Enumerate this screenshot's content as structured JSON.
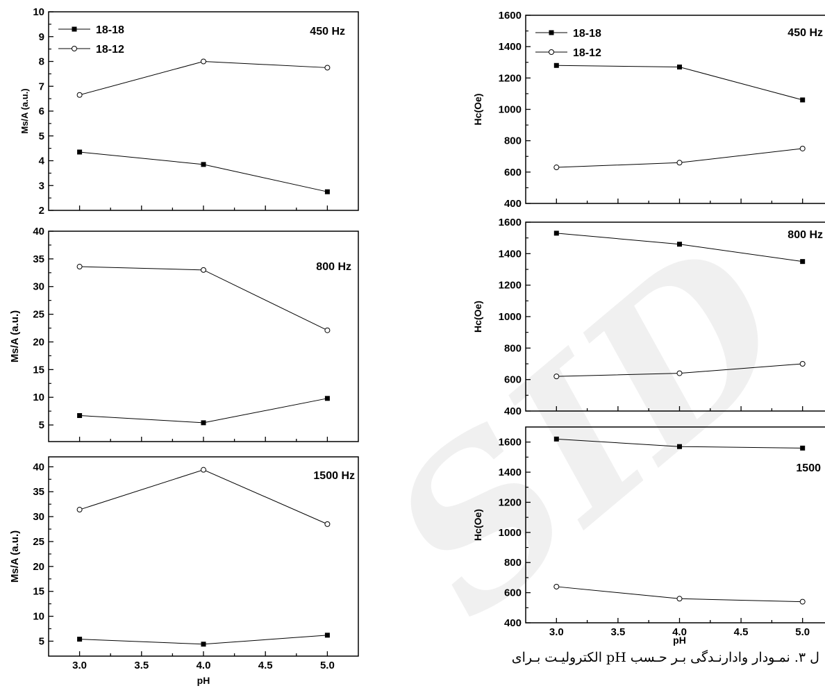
{
  "caption": "ل ۳. نمـودار وادارنـدگی بـر حـسب pH الکترولیـت بـرای",
  "chart_data": [
    {
      "type": "line",
      "title": "450 Hz",
      "xlabel": "",
      "ylabel": "Ms/A (a.u.)",
      "x": [
        3.0,
        4.0,
        5.0
      ],
      "xlim": [
        2.75,
        5.25
      ],
      "ylim": [
        2,
        10
      ],
      "xticks": [],
      "yticks": [
        "2",
        "3",
        "4",
        "5",
        "6",
        "7",
        "8",
        "9",
        "10"
      ],
      "legend": "top-left",
      "series": [
        {
          "name": "18-18",
          "marker": "filled-square",
          "values": [
            4.35,
            3.85,
            2.75
          ]
        },
        {
          "name": "18-12",
          "marker": "open-circle",
          "values": [
            6.65,
            8.0,
            7.75
          ]
        }
      ]
    },
    {
      "type": "line",
      "title": "800 Hz",
      "xlabel": "",
      "ylabel": "Ms/A (a.u.)",
      "x": [
        3.0,
        4.0,
        5.0
      ],
      "xlim": [
        2.75,
        5.25
      ],
      "ylim": [
        2,
        40
      ],
      "xticks": [],
      "yticks": [
        "5",
        "10",
        "15",
        "20",
        "25",
        "30",
        "35",
        "40"
      ],
      "series": [
        {
          "name": "18-18",
          "marker": "filled-square",
          "values": [
            6.7,
            5.4,
            9.8
          ]
        },
        {
          "name": "18-12",
          "marker": "open-circle",
          "values": [
            33.6,
            33.0,
            22.1
          ]
        }
      ]
    },
    {
      "type": "line",
      "title": "1500 Hz",
      "xlabel": "pH",
      "ylabel": "Ms/A (a.u.)",
      "x": [
        3.0,
        4.0,
        5.0
      ],
      "xlim": [
        2.75,
        5.25
      ],
      "ylim": [
        2,
        42
      ],
      "xticks": [
        "3.0",
        "3.5",
        "4.0",
        "4.5",
        "5.0"
      ],
      "yticks": [
        "5",
        "10",
        "15",
        "20",
        "25",
        "30",
        "35",
        "40"
      ],
      "series": [
        {
          "name": "18-18",
          "marker": "filled-square",
          "values": [
            5.4,
            4.4,
            6.2
          ]
        },
        {
          "name": "18-12",
          "marker": "open-circle",
          "values": [
            31.4,
            39.4,
            28.5
          ]
        }
      ]
    },
    {
      "type": "line",
      "title": "450 Hz",
      "xlabel": "",
      "ylabel": "Hc(Oe)",
      "x": [
        3.0,
        4.0,
        5.0
      ],
      "xlim": [
        2.75,
        5.25
      ],
      "ylim": [
        400,
        1600
      ],
      "xticks": [],
      "yticks": [
        "400",
        "600",
        "800",
        "1000",
        "1200",
        "1400",
        "1600"
      ],
      "legend": "top-left",
      "series": [
        {
          "name": "18-18",
          "marker": "filled-square",
          "values": [
            1280,
            1270,
            1060
          ]
        },
        {
          "name": "18-12",
          "marker": "open-circle",
          "values": [
            630,
            660,
            750
          ]
        }
      ]
    },
    {
      "type": "line",
      "title": "800 Hz",
      "xlabel": "",
      "ylabel": "Hc(Oe)",
      "x": [
        3.0,
        4.0,
        5.0
      ],
      "xlim": [
        2.75,
        5.25
      ],
      "ylim": [
        400,
        1600
      ],
      "xticks": [],
      "yticks": [
        "400",
        "600",
        "800",
        "1000",
        "1200",
        "1400",
        "1600"
      ],
      "series": [
        {
          "name": "18-18",
          "marker": "filled-square",
          "values": [
            1530,
            1460,
            1350
          ]
        },
        {
          "name": "18-12",
          "marker": "open-circle",
          "values": [
            620,
            640,
            700
          ]
        }
      ]
    },
    {
      "type": "line",
      "title": "1500",
      "xlabel": "pH",
      "ylabel": "Hc(Oe)",
      "x": [
        3.0,
        4.0,
        5.0
      ],
      "xlim": [
        2.75,
        5.25
      ],
      "ylim": [
        400,
        1700
      ],
      "xticks": [
        "3.0",
        "3.5",
        "4.0",
        "4.5",
        "5.0"
      ],
      "yticks": [
        "400",
        "600",
        "800",
        "1000",
        "1200",
        "1400",
        "1600"
      ],
      "series": [
        {
          "name": "18-18",
          "marker": "filled-square",
          "values": [
            1620,
            1570,
            1560
          ]
        },
        {
          "name": "18-12",
          "marker": "open-circle",
          "values": [
            640,
            560,
            540
          ]
        }
      ]
    }
  ]
}
